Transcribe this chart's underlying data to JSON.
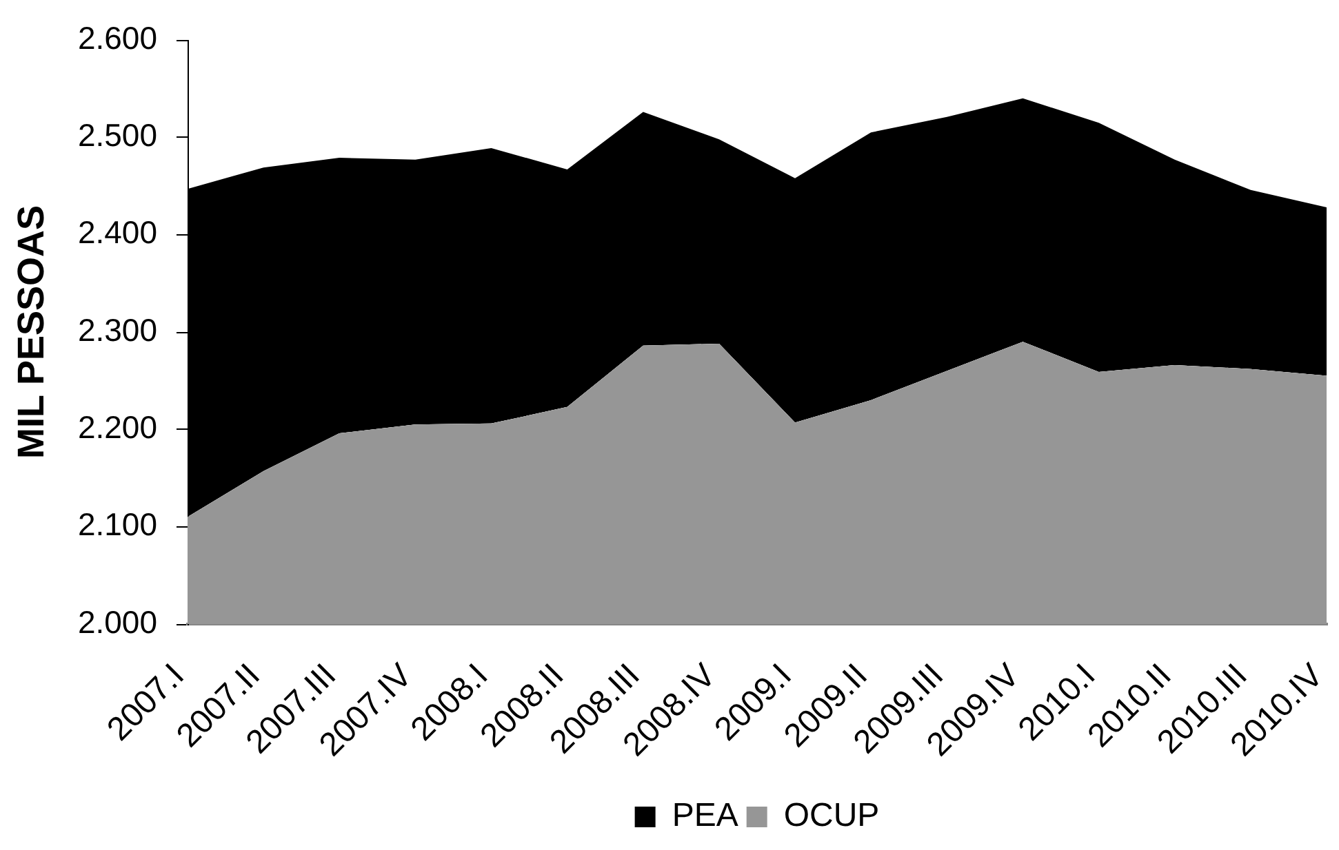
{
  "chart_data": {
    "type": "area",
    "ylabel": "MIL PESSOAS",
    "categories": [
      "2007.I",
      "2007.II",
      "2007.III",
      "2007.IV",
      "2008.I",
      "2008.II",
      "2008.III",
      "2008.IV",
      "2009.I",
      "2009.II",
      "2009.III",
      "2009.IV",
      "2010.I",
      "2010.II",
      "2010.III",
      "2010.IV"
    ],
    "series": [
      {
        "name": "PEA",
        "color": "#000000",
        "values": [
          2447,
          2469,
          2479,
          2477,
          2489,
          2467,
          2526,
          2498,
          2458,
          2505,
          2521,
          2540,
          2515,
          2477,
          2446,
          2428
        ]
      },
      {
        "name": "OCUP",
        "color": "#969696",
        "values": [
          2110,
          2157,
          2196,
          2205,
          2206,
          2223,
          2286,
          2288,
          2207,
          2230,
          2260,
          2290,
          2259,
          2266,
          2262,
          2255
        ]
      }
    ],
    "ylim": [
      2000,
      2600
    ],
    "yticks": [
      {
        "value": 2000,
        "label": "2.000"
      },
      {
        "value": 2100,
        "label": "2.100"
      },
      {
        "value": 2200,
        "label": "2.200"
      },
      {
        "value": 2300,
        "label": "2.300"
      },
      {
        "value": 2400,
        "label": "2.400"
      },
      {
        "value": 2500,
        "label": "2.500"
      },
      {
        "value": 2600,
        "label": "2.600"
      }
    ],
    "grid": false,
    "legend": "bottom"
  }
}
